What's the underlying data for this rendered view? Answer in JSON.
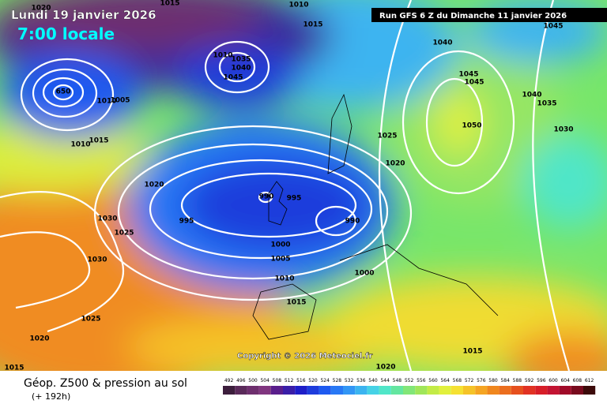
{
  "header": {
    "date": "Lundi 19 janvier 2026",
    "time": "7:00 locale",
    "run": "Run GFS 6 Z du Dimanche 11 janvier 2026"
  },
  "copyright": "Copyright © 2026 Meteociel.fr",
  "footer": {
    "title": "Géop. Z500 & pression au sol",
    "lead": "(+ 192h)"
  },
  "isobar_labels": [
    1020,
    1015,
    1010,
    1015,
    1040,
    1045,
    1010,
    1035,
    1040,
    1045,
    650,
    1005,
    1010,
    1015,
    1010,
    1045,
    1045,
    1040,
    1035,
    1050,
    1030,
    1025,
    1020,
    1020,
    990,
    995,
    995,
    990,
    1030,
    1025,
    1030,
    1000,
    1005,
    1000,
    1010,
    1015,
    1025,
    1020,
    1015,
    1020,
    1015
  ],
  "scale": {
    "labels": [
      492,
      496,
      500,
      504,
      508,
      512,
      516,
      520,
      524,
      528,
      532,
      536,
      540,
      544,
      548,
      552,
      556,
      560,
      564,
      568,
      572,
      576,
      580,
      584,
      588,
      592,
      596,
      600,
      604,
      608,
      612
    ],
    "colors": [
      "#3c1e3c",
      "#5a2a5a",
      "#6e2f6e",
      "#80357f",
      "#5a1e8c",
      "#3a1ea8",
      "#1e1ec8",
      "#1e3cdc",
      "#1e5af0",
      "#2878f5",
      "#3296f5",
      "#3cb4f0",
      "#46d2e6",
      "#50e6c8",
      "#64e6a0",
      "#82e678",
      "#a0e65a",
      "#c3eb46",
      "#e1f03c",
      "#f5e132",
      "#f5c328",
      "#f5a523",
      "#f0871e",
      "#eb6e1e",
      "#e6501e",
      "#e13223",
      "#d71e28",
      "#c31432",
      "#a00a28",
      "#780a1e",
      "#3c0a0a"
    ]
  }
}
